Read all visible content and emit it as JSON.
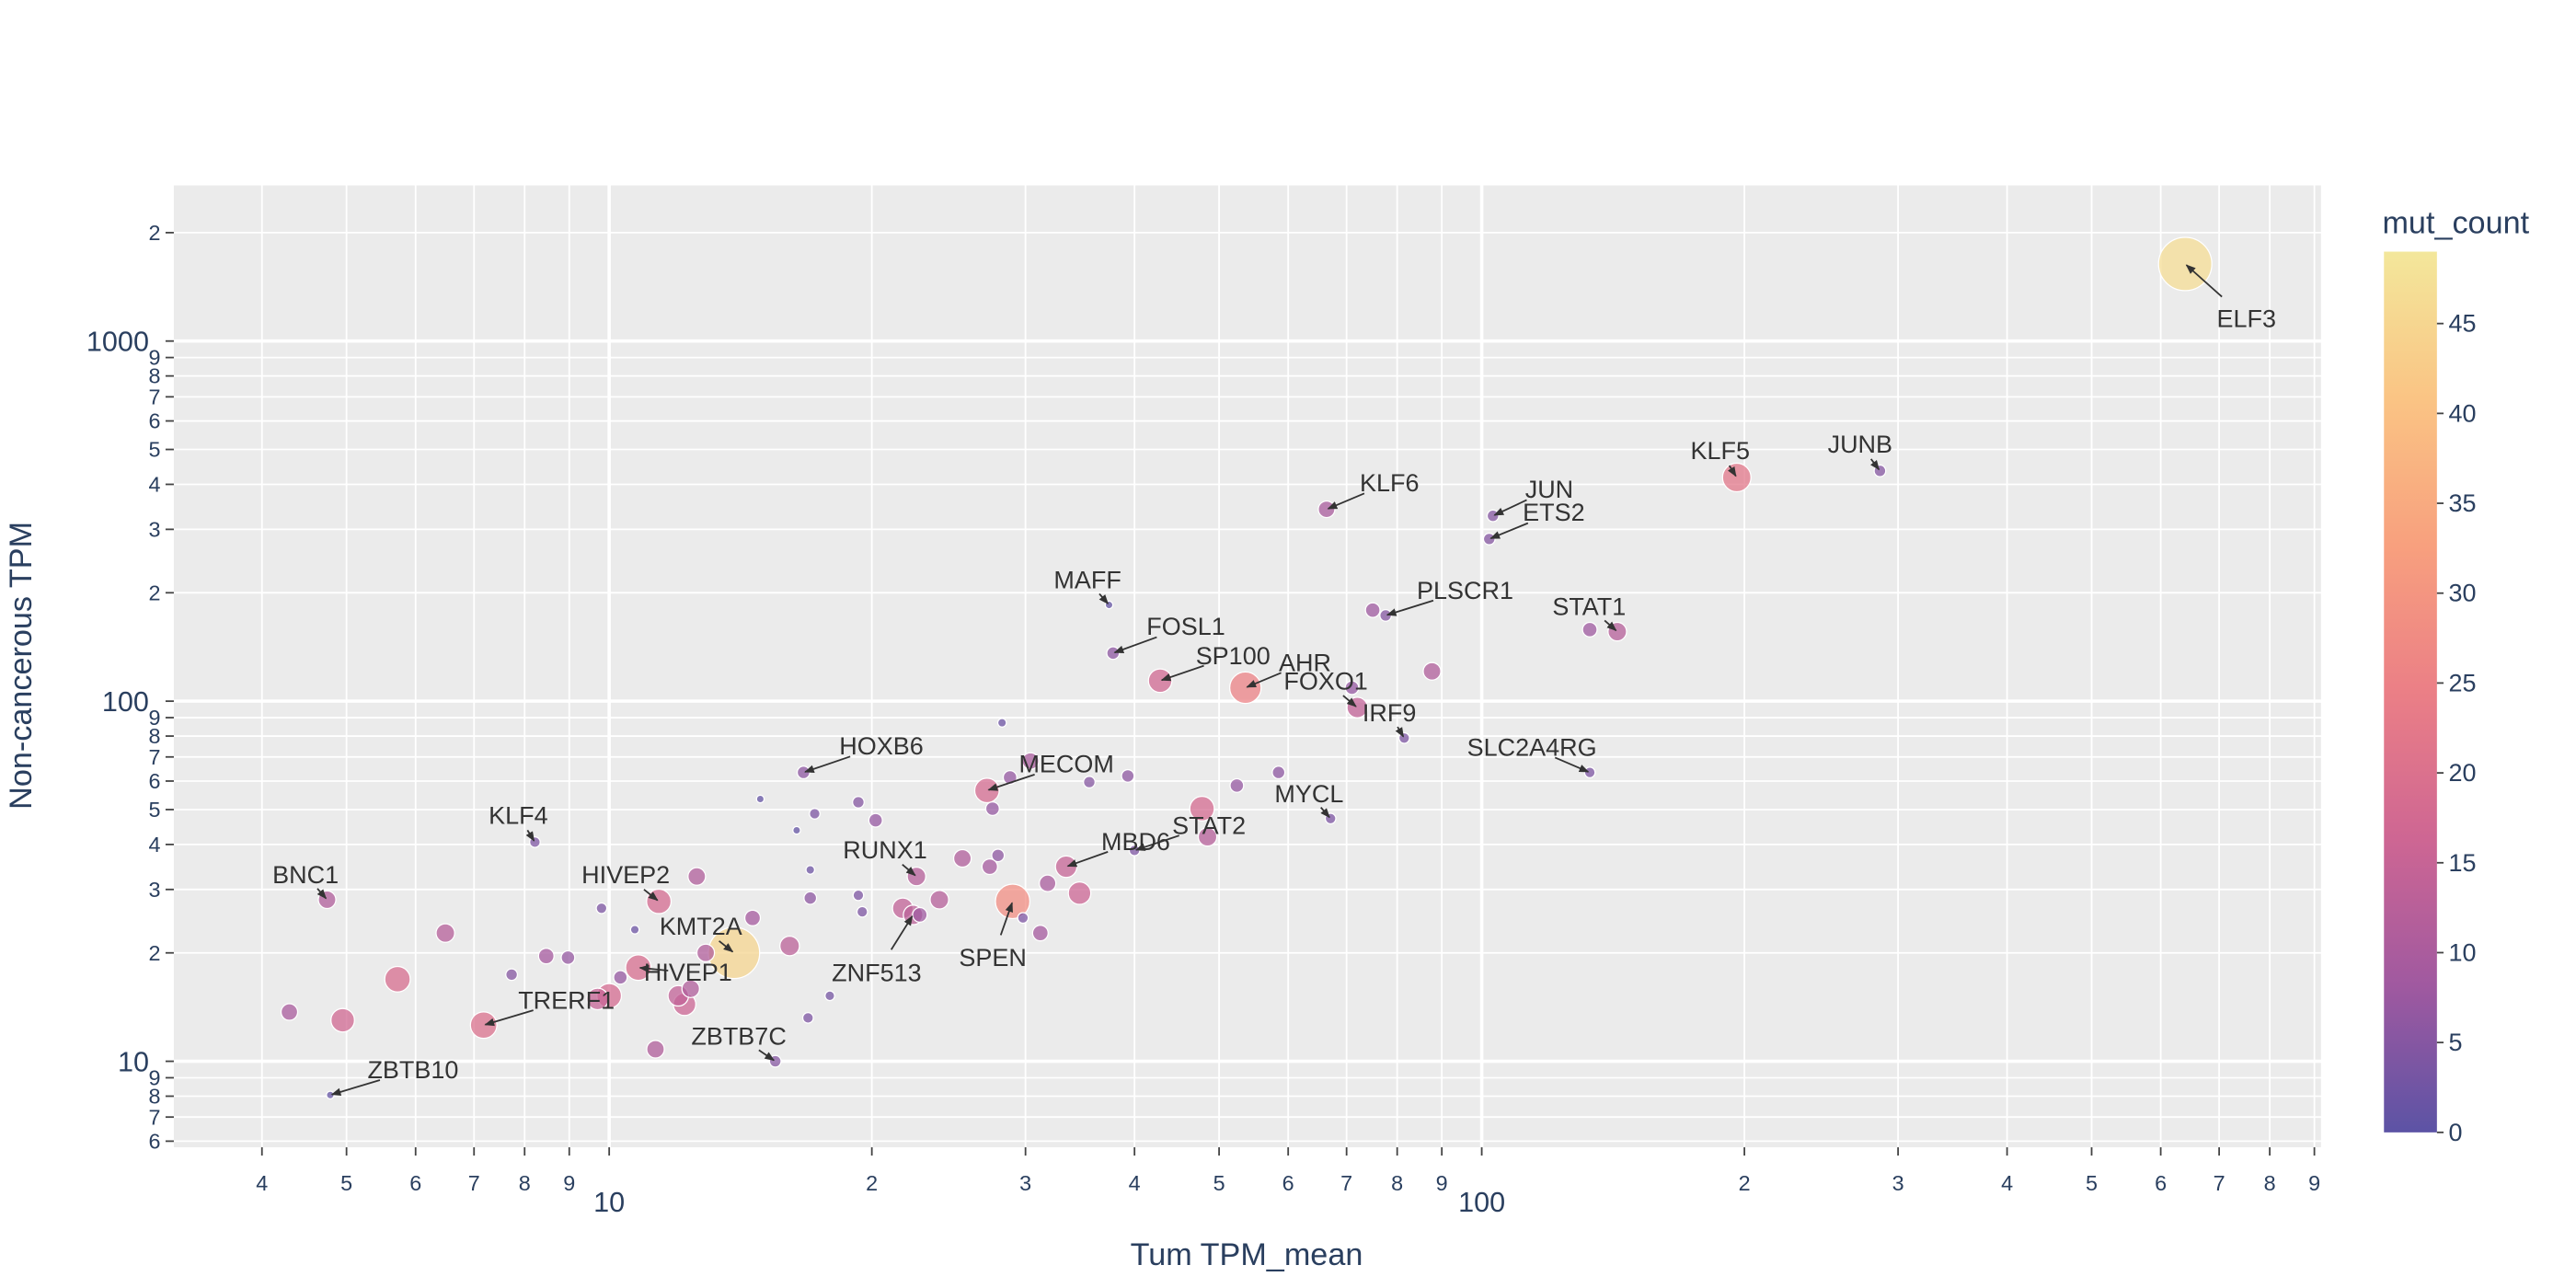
{
  "chart_data": {
    "type": "scatter",
    "x_label": "Tum TPM_mean",
    "y_label": "Non-cancerous TPM",
    "colorbar_title": "mut_count",
    "log_x": true,
    "log_y": true,
    "grid": true,
    "xlim": [
      3.17,
      916
    ],
    "ylim": [
      5.77,
      2705
    ],
    "xticks": [
      4,
      5,
      6,
      7,
      8,
      9,
      10,
      {
        "value": 20,
        "label": "2"
      },
      {
        "value": 30,
        "label": "3"
      },
      {
        "value": 40,
        "label": "4"
      },
      {
        "value": 50,
        "label": "5"
      },
      {
        "value": 60,
        "label": "6"
      },
      {
        "value": 70,
        "label": "7"
      },
      {
        "value": 80,
        "label": "8"
      },
      {
        "value": 90,
        "label": "9"
      },
      100,
      {
        "value": 200,
        "label": "2"
      },
      {
        "value": 300,
        "label": "3"
      },
      {
        "value": 400,
        "label": "4"
      },
      {
        "value": 500,
        "label": "5"
      },
      {
        "value": 600,
        "label": "6"
      },
      {
        "value": 700,
        "label": "7"
      },
      {
        "value": 800,
        "label": "8"
      },
      {
        "value": 900,
        "label": "9"
      }
    ],
    "yticks": [
      6,
      7,
      8,
      9,
      10,
      {
        "value": 20,
        "label": "2"
      },
      {
        "value": 30,
        "label": "3"
      },
      {
        "value": 40,
        "label": "4"
      },
      {
        "value": 50,
        "label": "5"
      },
      {
        "value": 60,
        "label": "6"
      },
      {
        "value": 70,
        "label": "7"
      },
      {
        "value": 80,
        "label": "8"
      },
      {
        "value": 90,
        "label": "9"
      },
      100,
      {
        "value": 200,
        "label": "2"
      },
      {
        "value": 300,
        "label": "3"
      },
      {
        "value": 400,
        "label": "4"
      },
      {
        "value": 500,
        "label": "5"
      },
      {
        "value": 600,
        "label": "6"
      },
      {
        "value": 700,
        "label": "7"
      },
      {
        "value": 800,
        "label": "8"
      },
      {
        "value": 900,
        "label": "9"
      },
      1000,
      {
        "value": 2000,
        "label": "2"
      }
    ],
    "colorscale": [
      "#5c53a5",
      "#a059a0",
      "#ce6693",
      "#eb7f86",
      "#f8a07e",
      "#fac484",
      "#f3e79b"
    ],
    "clim": [
      0,
      49
    ],
    "colorbar_ticks": [
      0,
      5,
      10,
      15,
      20,
      25,
      30,
      35,
      40,
      45
    ],
    "x": [
      640,
      286,
      196,
      66.4,
      103,
      102,
      77.6,
      75,
      143,
      133,
      37.4,
      37.8,
      42.8,
      53.6,
      72,
      71,
      87.7,
      81.5,
      133,
      67.1,
      58.5,
      52.4,
      47.8,
      48.5,
      40,
      39.3,
      35.5,
      33.4,
      34.6,
      31.8,
      31.2,
      29.0,
      29.8,
      27.1,
      30.4,
      28.8,
      28.2,
      27.5,
      27.9,
      27.3,
      25.4,
      22.5,
      23.9,
      21.7,
      22.3,
      22.7,
      19.5,
      19.3,
      20.2,
      19.3,
      17.2,
      17.0,
      17.0,
      16.4,
      14.9,
      16.7,
      16.9,
      17.9,
      16.1,
      15.5,
      13.9,
      14.6,
      12.9,
      12.4,
      12.2,
      12.0,
      12.6,
      11.4,
      10.8,
      10.0,
      9.7,
      10.3,
      10.7,
      9.8,
      11.3,
      8.97,
      8.47,
      7.73,
      7.18,
      8.22,
      6.49,
      5.72,
      4.95,
      4.3,
      4.75,
      4.79
    ],
    "y": [
      1637,
      436,
      418,
      341,
      327,
      282,
      173,
      179,
      156,
      158,
      185,
      136,
      114,
      109,
      96,
      109,
      121,
      79,
      63.4,
      47.2,
      63.4,
      58.3,
      50.3,
      42,
      38.5,
      62,
      59.6,
      34.7,
      29.3,
      31.2,
      22.7,
      27.8,
      25,
      56.5,
      68.2,
      61.4,
      87.1,
      50.3,
      37.3,
      34.7,
      36.6,
      32.6,
      28.1,
      26.6,
      25.5,
      25.5,
      26,
      28.9,
      46.7,
      52.4,
      48.7,
      28.4,
      34,
      43.8,
      53.5,
      63.4,
      13.2,
      15.2,
      20.9,
      10,
      20,
      25,
      20,
      15.9,
      14.4,
      15.2,
      32.6,
      27.8,
      18.2,
      15.2,
      14.9,
      17.1,
      23.2,
      26.6,
      10.8,
      19.4,
      19.6,
      17.4,
      12.6,
      40.6,
      22.7,
      16.9,
      13,
      13.7,
      28.1,
      8.06
    ],
    "mut_count": [
      47,
      5,
      22,
      10,
      5,
      5,
      5,
      8,
      12,
      8,
      1,
      6,
      17,
      25,
      14,
      7,
      11,
      4,
      4,
      4,
      6,
      7,
      18,
      12,
      4,
      6,
      5,
      15,
      16,
      10,
      9,
      28,
      4,
      18,
      10,
      7,
      2,
      7,
      6,
      9,
      11,
      12,
      12,
      14,
      13,
      8,
      4,
      4,
      7,
      5,
      4,
      6,
      2,
      1,
      1,
      6,
      4,
      3,
      13,
      5,
      45,
      9,
      11,
      11,
      16,
      14,
      11,
      18,
      19,
      18,
      15,
      7,
      2,
      4,
      11,
      7,
      9,
      5,
      20,
      4,
      12,
      19,
      17,
      10,
      11,
      1
    ],
    "labels": [
      "ELF3",
      "JUNB",
      "KLF5",
      "KLF6",
      "JUN",
      "ETS2",
      "PLSCR1",
      null,
      "STAT1",
      null,
      "MAFF",
      "FOSL1",
      "SP100",
      "AHR",
      "FOXO1",
      null,
      null,
      "IRF9",
      "SLC2A4RG",
      "MYCL",
      null,
      null,
      null,
      null,
      "STAT2",
      null,
      null,
      "MBD6",
      null,
      null,
      null,
      "SPEN",
      null,
      "MECOM",
      null,
      null,
      null,
      null,
      null,
      null,
      null,
      "RUNX1",
      null,
      null,
      "ZNF513",
      null,
      null,
      null,
      null,
      null,
      null,
      null,
      null,
      null,
      null,
      "HOXB6",
      null,
      null,
      null,
      "ZBTB7C",
      "KMT2A",
      null,
      null,
      null,
      null,
      null,
      null,
      "HIVEP2",
      "HIVEP1",
      null,
      null,
      null,
      null,
      null,
      null,
      null,
      null,
      null,
      "TRERF1",
      "KLF4",
      null,
      null,
      null,
      null,
      "BNC1",
      "ZBTB10"
    ]
  }
}
